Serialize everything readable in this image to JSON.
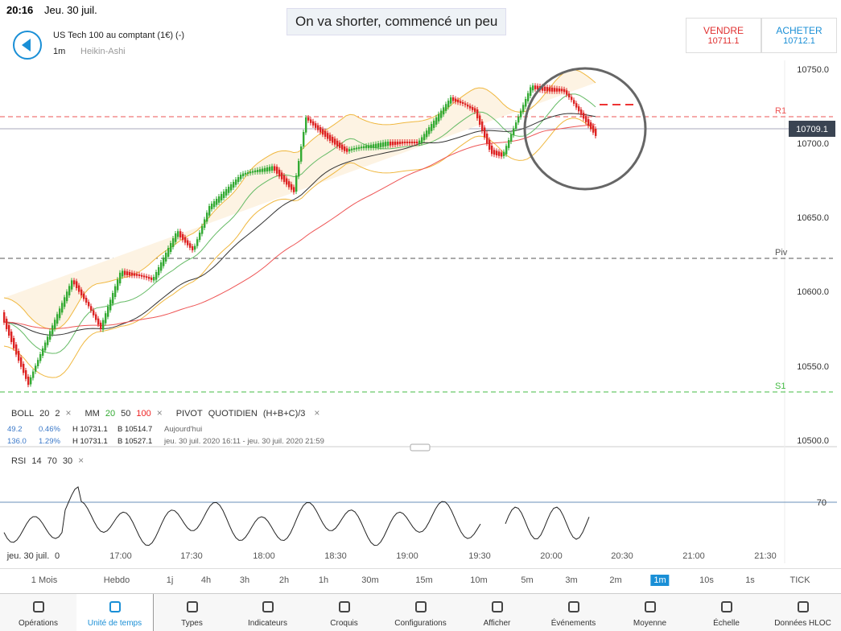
{
  "status": {
    "time": "20:16",
    "date": "Jeu. 30 juil."
  },
  "banner": "On va shorter, commencé un peu",
  "instrument": {
    "name": "US Tech 100 au comptant (1€) (-)",
    "interval": "1m",
    "chart_type": "Heikin-Ashi"
  },
  "sell": {
    "label": "VENDRE",
    "price": "10711.1"
  },
  "buy": {
    "label": "ACHETER",
    "price": "10712.1"
  },
  "price_axis": {
    "labels": [
      "10750.0",
      "10700.0",
      "10650.0",
      "10600.0",
      "10550.0",
      "10500.0"
    ],
    "current": "10709.1"
  },
  "levels": {
    "r1": "R1",
    "piv": "Piv",
    "s1": "S1"
  },
  "legend": {
    "boll": [
      "BOLL",
      "20",
      "2"
    ],
    "mm": [
      "MM",
      "20",
      "50",
      "100"
    ],
    "pivot": [
      "PIVOT",
      "QUOTIDIEN",
      "(H+B+C)/3"
    ],
    "close": "×"
  },
  "stats": [
    [
      "49.2",
      "0.46%",
      "H 10731.1",
      "B 10514.7",
      "Aujourd'hui"
    ],
    [
      "136.0",
      "1.29%",
      "H 10731.1",
      "B 10527.1",
      "jeu. 30 juil. 2020 16:11 - jeu. 30 juil. 2020 21:59"
    ]
  ],
  "rsi": {
    "labels": [
      "RSI",
      "14",
      "70",
      "30"
    ],
    "level": "70"
  },
  "time_axis": [
    "jeu. 30 juil.",
    "0",
    "17:00",
    "17:30",
    "18:00",
    "18:30",
    "19:00",
    "19:30",
    "20:00",
    "20:30",
    "21:00",
    "21:30"
  ],
  "timeframes": [
    "1 Mois",
    "Hebdo",
    "1j",
    "4h",
    "3h",
    "2h",
    "1h",
    "30m",
    "15m",
    "10m",
    "5m",
    "3m",
    "2m",
    "1m",
    "10s",
    "1s",
    "TICK"
  ],
  "tabs": [
    "Opérations",
    "Unité de temps",
    "Types",
    "Indicateurs",
    "Croquis",
    "Configurations",
    "Afficher",
    "Événements",
    "Moyenne",
    "Échelle",
    "Données HLOC"
  ]
}
